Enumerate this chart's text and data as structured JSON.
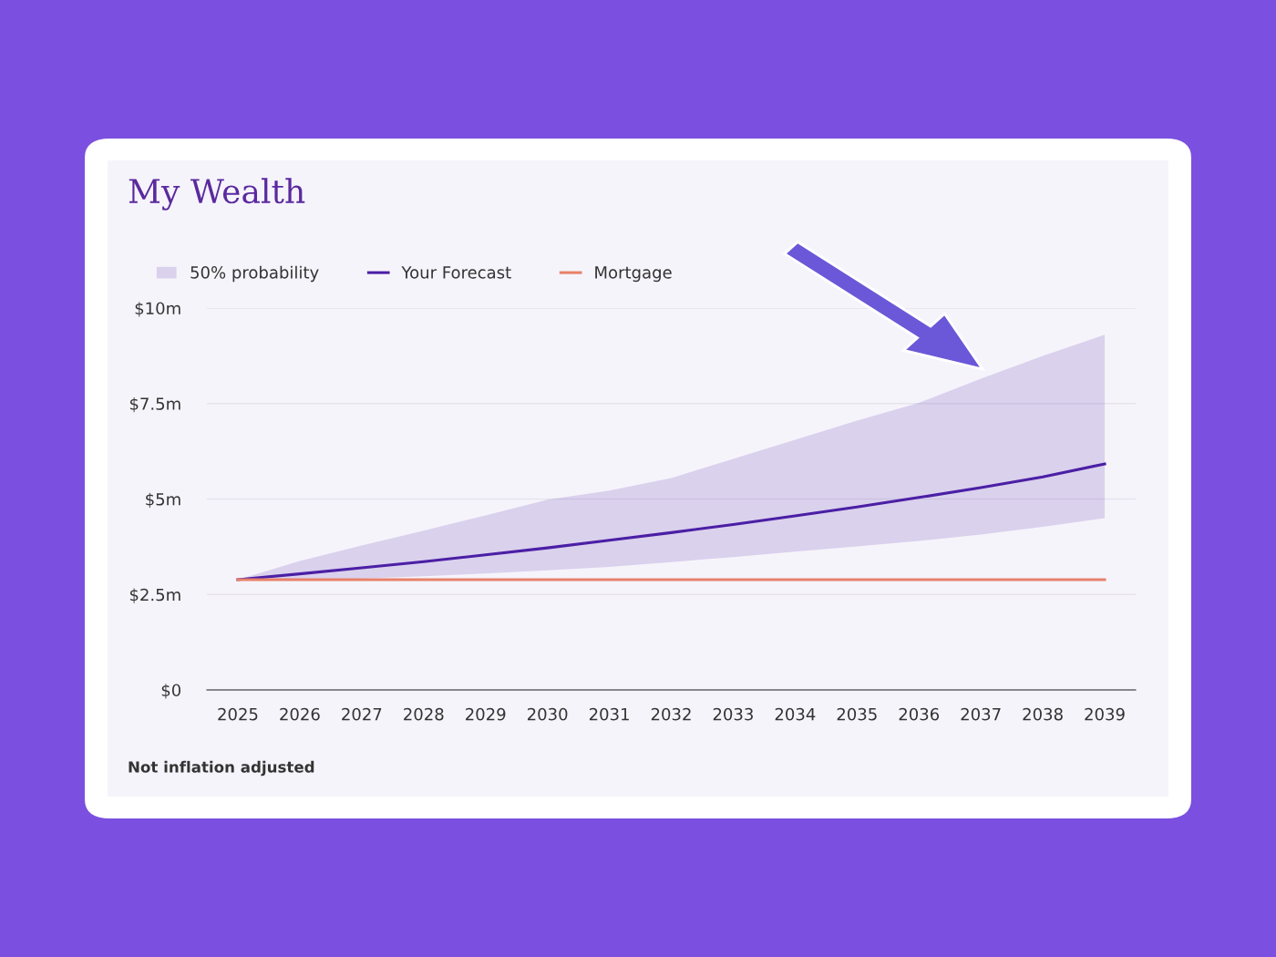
{
  "chart_data": {
    "type": "line",
    "title": "My Wealth",
    "x": [
      2025,
      2026,
      2027,
      2028,
      2029,
      2030,
      2031,
      2032,
      2033,
      2034,
      2035,
      2036,
      2037,
      2038,
      2039
    ],
    "series": [
      {
        "name": "Your Forecast",
        "color": "#4b1fa5",
        "values": [
          2.89,
          3.04,
          3.2,
          3.36,
          3.54,
          3.72,
          3.92,
          4.12,
          4.33,
          4.56,
          4.79,
          5.04,
          5.3,
          5.58,
          5.92
        ],
        "lower": [
          2.89,
          2.87,
          2.92,
          2.98,
          3.05,
          3.13,
          3.22,
          3.35,
          3.48,
          3.62,
          3.76,
          3.9,
          4.07,
          4.27,
          4.5
        ],
        "upper": [
          2.89,
          3.38,
          3.78,
          4.17,
          4.57,
          4.98,
          5.22,
          5.55,
          6.05,
          6.55,
          7.05,
          7.52,
          8.15,
          8.75,
          9.3
        ]
      },
      {
        "name": "Mortgage",
        "color": "#e8806a",
        "values": [
          2.89,
          2.89,
          2.89,
          2.89,
          2.89,
          2.89,
          2.89,
          2.89,
          2.89,
          2.89,
          2.89,
          2.89,
          2.89,
          2.89,
          2.89
        ]
      }
    ],
    "xlim": [
      2024.5,
      2039.5
    ],
    "xticks": [
      2025,
      2026,
      2027,
      2028,
      2029,
      2030,
      2031,
      2032,
      2033,
      2034,
      2035,
      2036,
      2037,
      2038,
      2039
    ],
    "ylim": [
      0,
      10
    ],
    "yticks": [
      {
        "value": 0,
        "label": "$0"
      },
      {
        "value": 2.5,
        "label": "$2.5m"
      },
      {
        "value": 5,
        "label": "$5m"
      },
      {
        "value": 7.5,
        "label": "$7.5m"
      },
      {
        "value": 10,
        "label": "$10m"
      }
    ],
    "grid": "y",
    "legend": "top left",
    "line_style": "solid",
    "marker": "none",
    "annotations": [
      "50% probability",
      "Not inflation adjusted"
    ]
  }
}
